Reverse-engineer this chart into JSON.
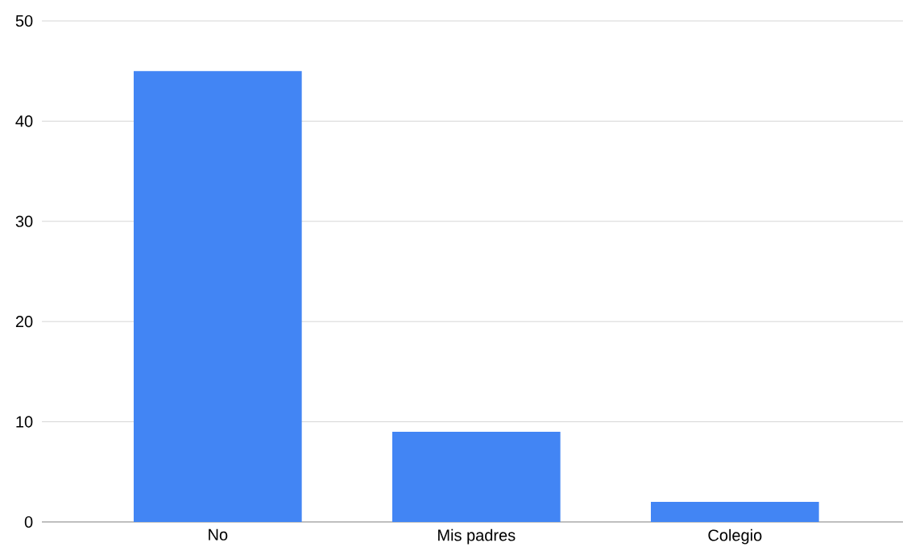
{
  "chart_data": {
    "type": "bar",
    "categories": [
      "No",
      "Mis padres",
      "Colegio"
    ],
    "values": [
      45,
      9,
      2
    ],
    "color": "#4285f4",
    "ylim": [
      0,
      50
    ],
    "yticks": [
      0,
      10,
      20,
      30,
      40,
      50
    ],
    "grid": "y"
  }
}
